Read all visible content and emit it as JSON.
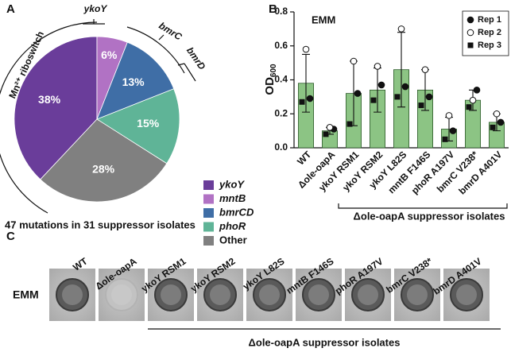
{
  "panel_labels": [
    "A",
    "B",
    "C"
  ],
  "chart_data": [
    {
      "type": "pie",
      "caption": "47 mutations in 31 suppressor isolates",
      "categories": [
        "ykoY",
        "mntB",
        "bmrCD",
        "phoR",
        "Other"
      ],
      "values": [
        38,
        6,
        13,
        15,
        28
      ],
      "value_labels": [
        "38%",
        "6%",
        "13%",
        "15%",
        "28%"
      ],
      "colors": [
        "#6a3d9a",
        "#b172c4",
        "#3f6ea6",
        "#5fb497",
        "#808080"
      ],
      "annotations": [
        "Mn²⁺ riboswitch",
        "ykoY",
        "bmrC",
        "bmrD"
      ]
    },
    {
      "type": "bar",
      "ylabel": "OD",
      "ylabel_subscript": "600",
      "inset_label": "EMM",
      "categories": [
        "WT",
        "Δole-oapA",
        "ykoY RSM1",
        "ykoY RSM2",
        "ykoY L82S",
        "mntB F146S",
        "phoR A197V",
        "bmrC V238*",
        "bmrD A401V"
      ],
      "values": [
        0.38,
        0.1,
        0.32,
        0.34,
        0.46,
        0.34,
        0.11,
        0.28,
        0.15
      ],
      "errors": [
        0.17,
        0.02,
        0.19,
        0.13,
        0.22,
        0.12,
        0.07,
        0.06,
        0.05
      ],
      "color": "#8cc484",
      "points": [
        {
          "name": "Rep 1",
          "marker": "filled-circle",
          "values": [
            0.29,
            0.11,
            0.32,
            0.37,
            0.36,
            0.3,
            0.1,
            0.34,
            0.15
          ]
        },
        {
          "name": "Rep 2",
          "marker": "open-circle",
          "values": [
            0.58,
            0.12,
            0.51,
            0.48,
            0.7,
            0.46,
            0.19,
            0.28,
            0.2
          ]
        },
        {
          "name": "Rep 3",
          "marker": "square",
          "values": [
            0.27,
            0.08,
            0.14,
            0.28,
            0.3,
            0.25,
            0.05,
            0.24,
            0.12
          ]
        }
      ],
      "ylim": [
        0,
        0.8
      ],
      "yticks": [
        {
          "value": 0,
          "label": "0.0"
        },
        0.2,
        0.4,
        0.6,
        0.8
      ],
      "bracket_label": "Δole-oapA suppressor isolates"
    }
  ],
  "panel_c": {
    "row_label": "EMM",
    "columns": [
      "WT",
      "Δole-oapA",
      "ykoY RSM1",
      "ykoY RSM2",
      "ykoY L82S",
      "mntB F146S",
      "phoR A197V",
      "bmrC V238*",
      "bmrD A401V"
    ],
    "bracket_label": "Δole-oapA suppressor isolates"
  }
}
